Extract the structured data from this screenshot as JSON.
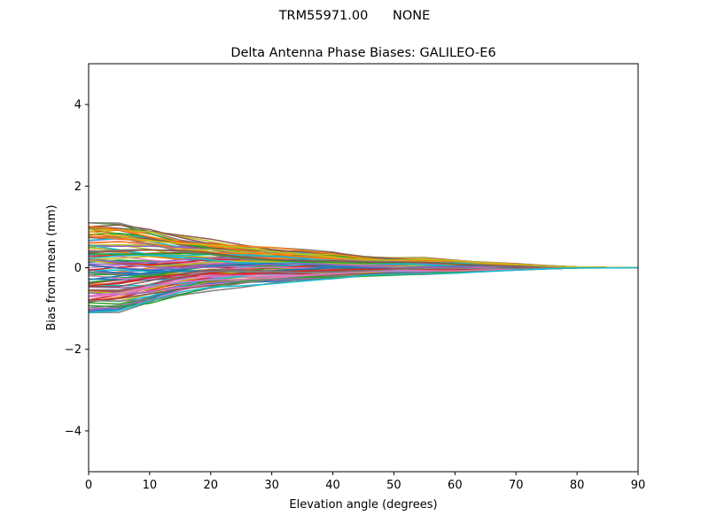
{
  "figure": {
    "suptitle_antenna": "TRM55971.00",
    "suptitle_radome": "NONE"
  },
  "chart_data": {
    "type": "line",
    "title": "Delta Antenna Phase Biases: GALILEO-E6",
    "xlabel": "Elevation angle (degrees)",
    "ylabel": "Bias from mean (mm)",
    "xlim": [
      0,
      90
    ],
    "ylim": [
      -5,
      5
    ],
    "xticks": [
      0,
      10,
      20,
      30,
      40,
      50,
      60,
      70,
      80,
      90
    ],
    "yticks": [
      -4,
      -2,
      0,
      2,
      4
    ],
    "ytick_labels": [
      "−4",
      "−2",
      "0",
      "2",
      "4"
    ],
    "x": [
      0,
      5,
      10,
      15,
      20,
      25,
      30,
      35,
      40,
      45,
      50,
      55,
      60,
      65,
      70,
      75,
      80,
      85,
      90
    ],
    "grid": false,
    "legend": "none",
    "series_count": 100,
    "envelope_upper": [
      1.1,
      1.17,
      1.12,
      1.0,
      0.9,
      0.78,
      0.68,
      0.58,
      0.48,
      0.38,
      0.35,
      0.35,
      0.3,
      0.24,
      0.17,
      0.09,
      0.03,
      0.01,
      0.0
    ],
    "envelope_lower": [
      -1.1,
      -1.18,
      -1.1,
      -0.92,
      -0.76,
      -0.66,
      -0.56,
      -0.47,
      -0.39,
      -0.33,
      -0.3,
      -0.28,
      -0.25,
      -0.19,
      -0.13,
      -0.07,
      -0.02,
      -0.01,
      0.0
    ],
    "palette": [
      "#1f77b4",
      "#ff7f0e",
      "#2ca02c",
      "#d62728",
      "#9467bd",
      "#8c564b",
      "#e377c2",
      "#7f7f7f",
      "#bcbd22",
      "#17becf"
    ]
  }
}
